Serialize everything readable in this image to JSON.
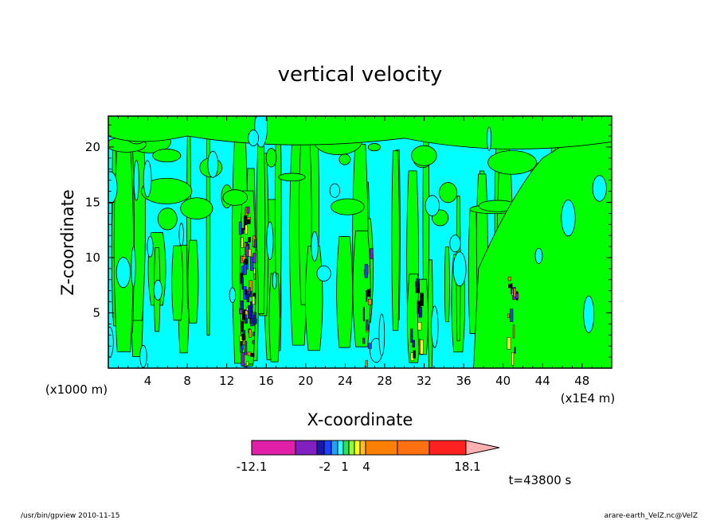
{
  "chart_data": {
    "type": "heatmap",
    "title": "vertical velocity",
    "xlabel": "X-coordinate",
    "ylabel": "Z-coordinate",
    "x_unit_left": "(x1000 m)",
    "x_unit_right": "(x1E4 m)",
    "xlim": [
      0,
      51
    ],
    "ylim": [
      0,
      22.8
    ],
    "xticks": [
      "4",
      "8",
      "12",
      "16",
      "20",
      "24",
      "28",
      "32",
      "36",
      "40",
      "44",
      "48"
    ],
    "yticks": [
      "5",
      "10",
      "15",
      "20"
    ],
    "colorbar": {
      "colors": [
        "#e020a8",
        "#8020c0",
        "#1818b0",
        "#2040ff",
        "#20a0ff",
        "#30ffff",
        "#30e060",
        "#90ff30",
        "#ffff20",
        "#ffc020",
        "#ff8000",
        "#ff7010",
        "#ff2020",
        "#ff8080",
        "#ffb0b0"
      ],
      "labels": [
        "-12.1",
        "-2",
        "1",
        "4",
        "18.1"
      ]
    },
    "time_label": "t=43800 s",
    "dominant_colors": {
      "positive": "#00ff00",
      "negative": "#00ffff"
    },
    "strong_update_columns_x": [
      13.7,
      14.3,
      26.1,
      31.1,
      40.9
    ]
  },
  "footer": {
    "left": "/usr/bin/gpview   2010-11-15",
    "right": "arare-earth_VelZ.nc@VelZ"
  }
}
